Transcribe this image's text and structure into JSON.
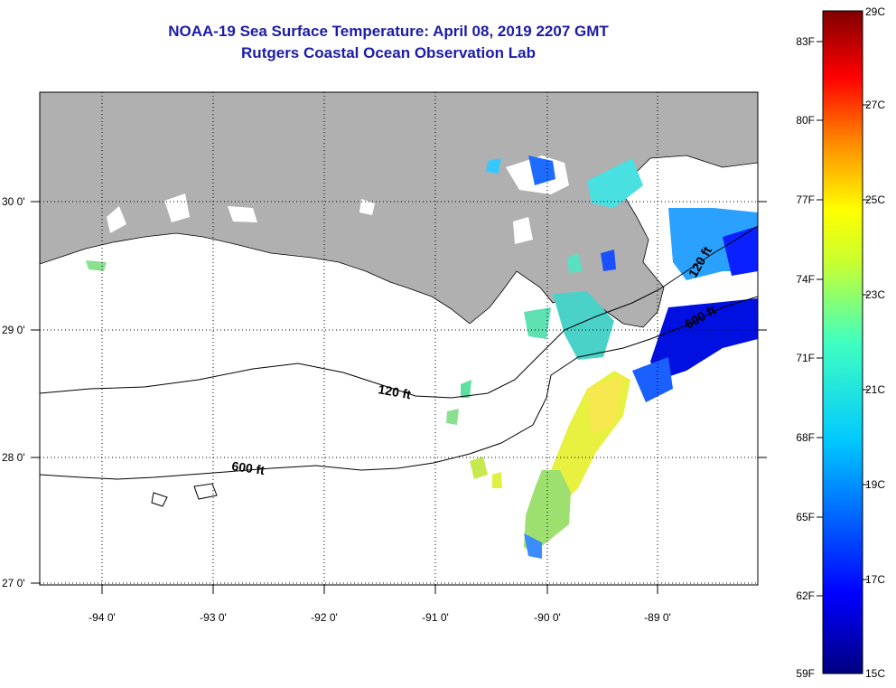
{
  "header": {
    "title": "NOAA-19 Sea Surface Temperature:  April 08, 2019 2207 GMT",
    "subtitle": "Rutgers Coastal Ocean Observation Lab"
  },
  "map": {
    "lon_labels": [
      "-94 0'",
      "-93 0'",
      "-92 0'",
      "-91 0'",
      "-90 0'",
      "-89 0'"
    ],
    "lat_labels": [
      "30 0'",
      "29 0'",
      "28 0'",
      "27 0'"
    ],
    "contours": [
      "120 ft",
      "600 ft",
      "120 ft",
      "600 ft"
    ],
    "colors": {
      "land": "#b0b0b0",
      "ocean": "#ffffff",
      "cloud": "#ffffff"
    }
  },
  "colorbar": {
    "f_labels": [
      "83F",
      "80F",
      "77F",
      "74F",
      "71F",
      "68F",
      "65F",
      "62F",
      "59F"
    ],
    "c_labels": [
      "29C",
      "27C",
      "25C",
      "23C",
      "21C",
      "19C",
      "17C",
      "15C"
    ],
    "range_c": [
      15,
      29
    ],
    "range_f": [
      59,
      84
    ]
  }
}
